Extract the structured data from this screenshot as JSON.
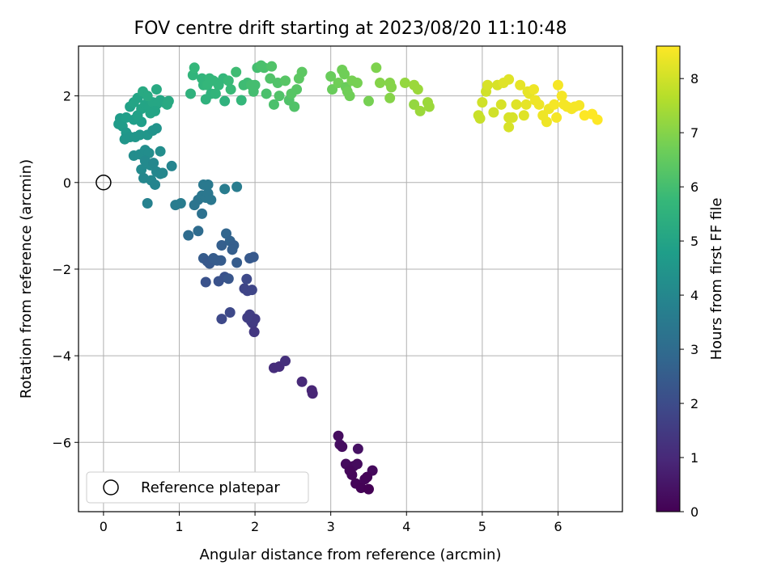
{
  "chart_data": {
    "type": "scatter",
    "title": "FOV centre drift starting at 2023/08/20 11:10:48",
    "xlabel": "Angular distance from reference (arcmin)",
    "ylabel": "Rotation from reference (arcmin)",
    "xlim": [
      -0.33,
      6.85
    ],
    "ylim": [
      -7.6,
      3.15
    ],
    "xticks": [
      0,
      1,
      2,
      3,
      4,
      5,
      6
    ],
    "yticks": [
      -6,
      -4,
      -2,
      0,
      2
    ],
    "grid": true,
    "legend": {
      "location": "lower-left",
      "entries": [
        "Reference platepar"
      ]
    },
    "reference_point": {
      "x": 0,
      "y": 0,
      "label": "Reference platepar"
    },
    "colorbar": {
      "label": "Hours from first FF file",
      "min": 0,
      "max": 8.6,
      "ticks": [
        0,
        1,
        2,
        3,
        4,
        5,
        6,
        7,
        8
      ],
      "colormap": "viridis"
    },
    "points": [
      [
        3.1,
        -5.85,
        0.3
      ],
      [
        3.12,
        -6.05,
        0.35
      ],
      [
        3.15,
        -6.1,
        0.3
      ],
      [
        3.2,
        -6.5,
        0.25
      ],
      [
        3.3,
        -6.55,
        0.2
      ],
      [
        3.35,
        -6.5,
        0.25
      ],
      [
        3.28,
        -6.75,
        0.15
      ],
      [
        3.33,
        -6.95,
        0.1
      ],
      [
        3.4,
        -7.05,
        0.05
      ],
      [
        3.45,
        -6.85,
        0.1
      ],
      [
        3.5,
        -7.08,
        0.0
      ],
      [
        3.55,
        -6.65,
        0.2
      ],
      [
        3.48,
        -6.8,
        0.1
      ],
      [
        3.36,
        -6.15,
        0.4
      ],
      [
        3.25,
        -6.65,
        0.15
      ],
      [
        2.25,
        -4.28,
        1.1
      ],
      [
        2.32,
        -4.25,
        1.1
      ],
      [
        2.4,
        -4.12,
        1.2
      ],
      [
        2.62,
        -4.6,
        1.0
      ],
      [
        2.75,
        -4.8,
        0.9
      ],
      [
        2.76,
        -4.87,
        0.9
      ],
      [
        1.56,
        -3.15,
        1.9
      ],
      [
        1.67,
        -3.0,
        1.9
      ],
      [
        1.93,
        -3.05,
        1.6
      ],
      [
        1.95,
        -3.2,
        1.6
      ],
      [
        1.97,
        -3.25,
        1.5
      ],
      [
        2.0,
        -3.15,
        1.5
      ],
      [
        1.9,
        -3.12,
        1.6
      ],
      [
        1.99,
        -3.45,
        1.4
      ],
      [
        1.86,
        -2.45,
        1.8
      ],
      [
        1.9,
        -2.5,
        1.8
      ],
      [
        1.96,
        -2.48,
        1.8
      ],
      [
        1.89,
        -2.23,
        1.9
      ],
      [
        1.35,
        -2.3,
        2.2
      ],
      [
        1.52,
        -2.28,
        2.2
      ],
      [
        1.6,
        -2.18,
        2.2
      ],
      [
        1.65,
        -2.22,
        2.3
      ],
      [
        1.62,
        -1.18,
        2.8
      ],
      [
        1.67,
        -1.35,
        2.7
      ],
      [
        1.72,
        -1.45,
        2.6
      ],
      [
        1.7,
        -1.55,
        2.6
      ],
      [
        1.56,
        -1.45,
        2.6
      ],
      [
        1.55,
        -1.8,
        2.5
      ],
      [
        1.76,
        -1.85,
        2.5
      ],
      [
        1.93,
        -1.75,
        2.4
      ],
      [
        1.98,
        -1.72,
        2.4
      ],
      [
        1.32,
        -1.75,
        2.5
      ],
      [
        1.37,
        -1.82,
        2.4
      ],
      [
        1.4,
        -1.87,
        2.4
      ],
      [
        1.45,
        -1.75,
        2.5
      ],
      [
        1.5,
        -1.8,
        2.5
      ],
      [
        1.12,
        -1.22,
        3.0
      ],
      [
        1.25,
        -1.12,
        3.0
      ],
      [
        1.2,
        -0.52,
        3.3
      ],
      [
        1.25,
        -0.4,
        3.3
      ],
      [
        1.3,
        -0.3,
        3.4
      ],
      [
        1.35,
        -0.35,
        3.4
      ],
      [
        1.38,
        -0.25,
        3.4
      ],
      [
        1.42,
        -0.4,
        3.4
      ],
      [
        1.32,
        -0.05,
        3.5
      ],
      [
        1.38,
        -0.05,
        3.5
      ],
      [
        1.3,
        -0.72,
        3.2
      ],
      [
        1.6,
        -0.15,
        3.6
      ],
      [
        1.76,
        -0.1,
        3.6
      ],
      [
        0.95,
        -0.52,
        3.6
      ],
      [
        1.02,
        -0.48,
        3.6
      ],
      [
        0.58,
        -0.48,
        3.8
      ],
      [
        0.4,
        0.62,
        4.2
      ],
      [
        0.48,
        0.65,
        4.2
      ],
      [
        0.55,
        0.75,
        4.2
      ],
      [
        0.6,
        0.68,
        4.2
      ],
      [
        0.75,
        0.72,
        4.2
      ],
      [
        0.5,
        0.3,
        4.1
      ],
      [
        0.55,
        0.5,
        4.1
      ],
      [
        0.62,
        0.4,
        4.1
      ],
      [
        0.66,
        0.45,
        4.0
      ],
      [
        0.7,
        0.25,
        4.0
      ],
      [
        0.75,
        0.2,
        4.0
      ],
      [
        0.78,
        0.22,
        4.0
      ],
      [
        0.9,
        0.38,
        3.9
      ],
      [
        0.53,
        0.1,
        4.0
      ],
      [
        0.63,
        0.05,
        4.0
      ],
      [
        0.68,
        -0.05,
        3.9
      ],
      [
        0.2,
        1.35,
        4.7
      ],
      [
        0.25,
        1.3,
        4.7
      ],
      [
        0.3,
        1.15,
        4.6
      ],
      [
        0.28,
        1.0,
        4.5
      ],
      [
        0.35,
        1.05,
        4.5
      ],
      [
        0.42,
        1.05,
        4.5
      ],
      [
        0.48,
        1.1,
        4.5
      ],
      [
        0.58,
        1.1,
        4.5
      ],
      [
        0.65,
        1.2,
        4.4
      ],
      [
        0.7,
        1.25,
        4.4
      ],
      [
        0.22,
        1.48,
        4.7
      ],
      [
        0.3,
        1.5,
        4.8
      ],
      [
        0.4,
        1.45,
        4.8
      ],
      [
        0.5,
        1.4,
        4.8
      ],
      [
        0.35,
        1.75,
        4.9
      ],
      [
        0.4,
        1.85,
        5.0
      ],
      [
        0.45,
        1.95,
        5.0
      ],
      [
        0.5,
        1.7,
        5.0
      ],
      [
        0.55,
        1.8,
        5.0
      ],
      [
        0.6,
        1.75,
        5.0
      ],
      [
        0.65,
        1.85,
        5.1
      ],
      [
        0.7,
        1.8,
        5.1
      ],
      [
        0.75,
        1.9,
        5.1
      ],
      [
        0.52,
        2.1,
        5.2
      ],
      [
        0.58,
        2.0,
        5.2
      ],
      [
        0.7,
        2.15,
        5.2
      ],
      [
        0.68,
        1.65,
        5.0
      ],
      [
        0.8,
        1.85,
        5.1
      ],
      [
        0.84,
        1.8,
        5.2
      ],
      [
        0.86,
        1.88,
        5.2
      ],
      [
        0.45,
        1.55,
        4.9
      ],
      [
        0.62,
        1.6,
        5.0
      ],
      [
        1.15,
        2.05,
        5.5
      ],
      [
        1.18,
        2.48,
        5.6
      ],
      [
        1.2,
        2.65,
        5.7
      ],
      [
        1.3,
        2.4,
        5.6
      ],
      [
        1.32,
        2.25,
        5.6
      ],
      [
        1.37,
        2.25,
        5.7
      ],
      [
        1.4,
        2.4,
        5.7
      ],
      [
        1.45,
        2.35,
        5.7
      ],
      [
        1.35,
        1.92,
        5.5
      ],
      [
        1.42,
        2.05,
        5.5
      ],
      [
        1.48,
        2.05,
        5.6
      ],
      [
        1.52,
        2.25,
        5.7
      ],
      [
        1.58,
        2.4,
        5.7
      ],
      [
        1.6,
        1.88,
        5.5
      ],
      [
        1.65,
        2.35,
        5.8
      ],
      [
        1.68,
        2.15,
        5.8
      ],
      [
        1.75,
        2.55,
        5.9
      ],
      [
        1.82,
        1.9,
        5.7
      ],
      [
        1.85,
        2.25,
        5.9
      ],
      [
        1.9,
        2.3,
        5.9
      ],
      [
        1.95,
        2.25,
        6.0
      ],
      [
        2.0,
        2.25,
        6.0
      ],
      [
        1.98,
        2.1,
        6.0
      ],
      [
        2.03,
        2.65,
        6.0
      ],
      [
        2.08,
        2.7,
        6.1
      ],
      [
        2.12,
        2.65,
        6.1
      ],
      [
        2.15,
        2.05,
        6.1
      ],
      [
        2.2,
        2.4,
        6.2
      ],
      [
        2.22,
        2.68,
        6.2
      ],
      [
        2.25,
        1.8,
        6.1
      ],
      [
        2.3,
        2.3,
        6.2
      ],
      [
        2.32,
        2.0,
        6.2
      ],
      [
        2.4,
        2.35,
        6.3
      ],
      [
        2.45,
        1.9,
        6.2
      ],
      [
        2.52,
        1.75,
        6.2
      ],
      [
        2.55,
        2.15,
        6.3
      ],
      [
        2.58,
        2.4,
        6.4
      ],
      [
        2.62,
        2.55,
        6.4
      ],
      [
        2.48,
        2.05,
        6.3
      ],
      [
        3.0,
        2.45,
        6.6
      ],
      [
        3.02,
        2.15,
        6.6
      ],
      [
        3.1,
        2.3,
        6.7
      ],
      [
        3.15,
        2.6,
        6.7
      ],
      [
        3.18,
        2.5,
        6.7
      ],
      [
        3.2,
        2.2,
        6.6
      ],
      [
        3.22,
        2.1,
        6.7
      ],
      [
        3.25,
        2.0,
        6.7
      ],
      [
        3.28,
        2.35,
        6.8
      ],
      [
        3.35,
        2.3,
        6.8
      ],
      [
        3.5,
        1.88,
        6.8
      ],
      [
        3.6,
        2.65,
        6.9
      ],
      [
        3.65,
        2.3,
        7.0
      ],
      [
        3.78,
        2.3,
        7.0
      ],
      [
        3.8,
        2.2,
        7.0
      ],
      [
        3.78,
        1.95,
        7.0
      ],
      [
        3.98,
        2.3,
        7.2
      ],
      [
        4.1,
        2.25,
        7.3
      ],
      [
        4.15,
        2.15,
        7.3
      ],
      [
        4.1,
        1.8,
        7.2
      ],
      [
        4.18,
        1.65,
        7.3
      ],
      [
        4.28,
        1.85,
        7.3
      ],
      [
        4.3,
        1.75,
        7.3
      ],
      [
        4.95,
        1.55,
        7.9
      ],
      [
        4.97,
        1.48,
        7.9
      ],
      [
        5.0,
        1.85,
        8.0
      ],
      [
        5.05,
        2.1,
        8.0
      ],
      [
        5.07,
        2.25,
        8.1
      ],
      [
        5.15,
        1.62,
        8.0
      ],
      [
        5.2,
        2.25,
        8.1
      ],
      [
        5.25,
        1.8,
        8.1
      ],
      [
        5.28,
        2.3,
        8.2
      ],
      [
        5.35,
        2.38,
        8.2
      ],
      [
        5.35,
        1.5,
        8.1
      ],
      [
        5.35,
        1.28,
        8.1
      ],
      [
        5.4,
        1.5,
        8.1
      ],
      [
        5.45,
        1.8,
        8.2
      ],
      [
        5.5,
        2.25,
        8.3
      ],
      [
        5.55,
        1.55,
        8.2
      ],
      [
        5.58,
        1.8,
        8.3
      ],
      [
        5.6,
        2.1,
        8.3
      ],
      [
        5.62,
        2.05,
        8.3
      ],
      [
        5.68,
        2.15,
        8.4
      ],
      [
        5.7,
        1.9,
        8.4
      ],
      [
        5.75,
        1.8,
        8.4
      ],
      [
        5.8,
        1.55,
        8.4
      ],
      [
        5.85,
        1.4,
        8.4
      ],
      [
        5.88,
        1.7,
        8.4
      ],
      [
        5.95,
        1.8,
        8.5
      ],
      [
        5.98,
        1.5,
        8.5
      ],
      [
        6.0,
        2.25,
        8.5
      ],
      [
        6.05,
        2.0,
        8.5
      ],
      [
        6.08,
        1.8,
        8.5
      ],
      [
        6.12,
        1.75,
        8.5
      ],
      [
        6.18,
        1.7,
        8.5
      ],
      [
        6.22,
        1.75,
        8.5
      ],
      [
        6.28,
        1.78,
        8.5
      ],
      [
        6.35,
        1.55,
        8.6
      ],
      [
        6.45,
        1.58,
        8.6
      ],
      [
        6.52,
        1.45,
        8.6
      ]
    ]
  }
}
